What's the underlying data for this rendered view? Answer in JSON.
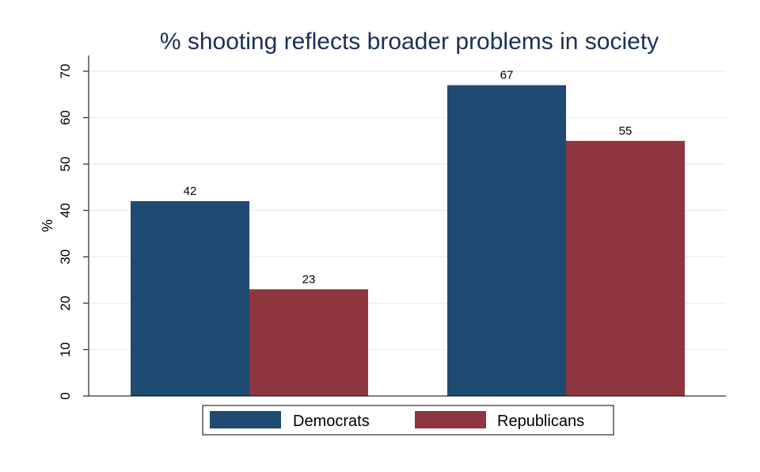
{
  "chart_data": {
    "type": "bar",
    "title": "% shooting reflects broader problems in society",
    "xlabel": "",
    "ylabel": "%",
    "ylim": [
      0,
      70
    ],
    "yticks": [
      0,
      10,
      20,
      30,
      40,
      50,
      60,
      70
    ],
    "categories": [
      "",
      ""
    ],
    "series": [
      {
        "name": "Democrats",
        "values": [
          42,
          67
        ],
        "color": "#1f4a72"
      },
      {
        "name": "Republicans",
        "values": [
          23,
          55
        ],
        "color": "#8f353f"
      }
    ],
    "grid": true,
    "legend_position": "bottom"
  }
}
